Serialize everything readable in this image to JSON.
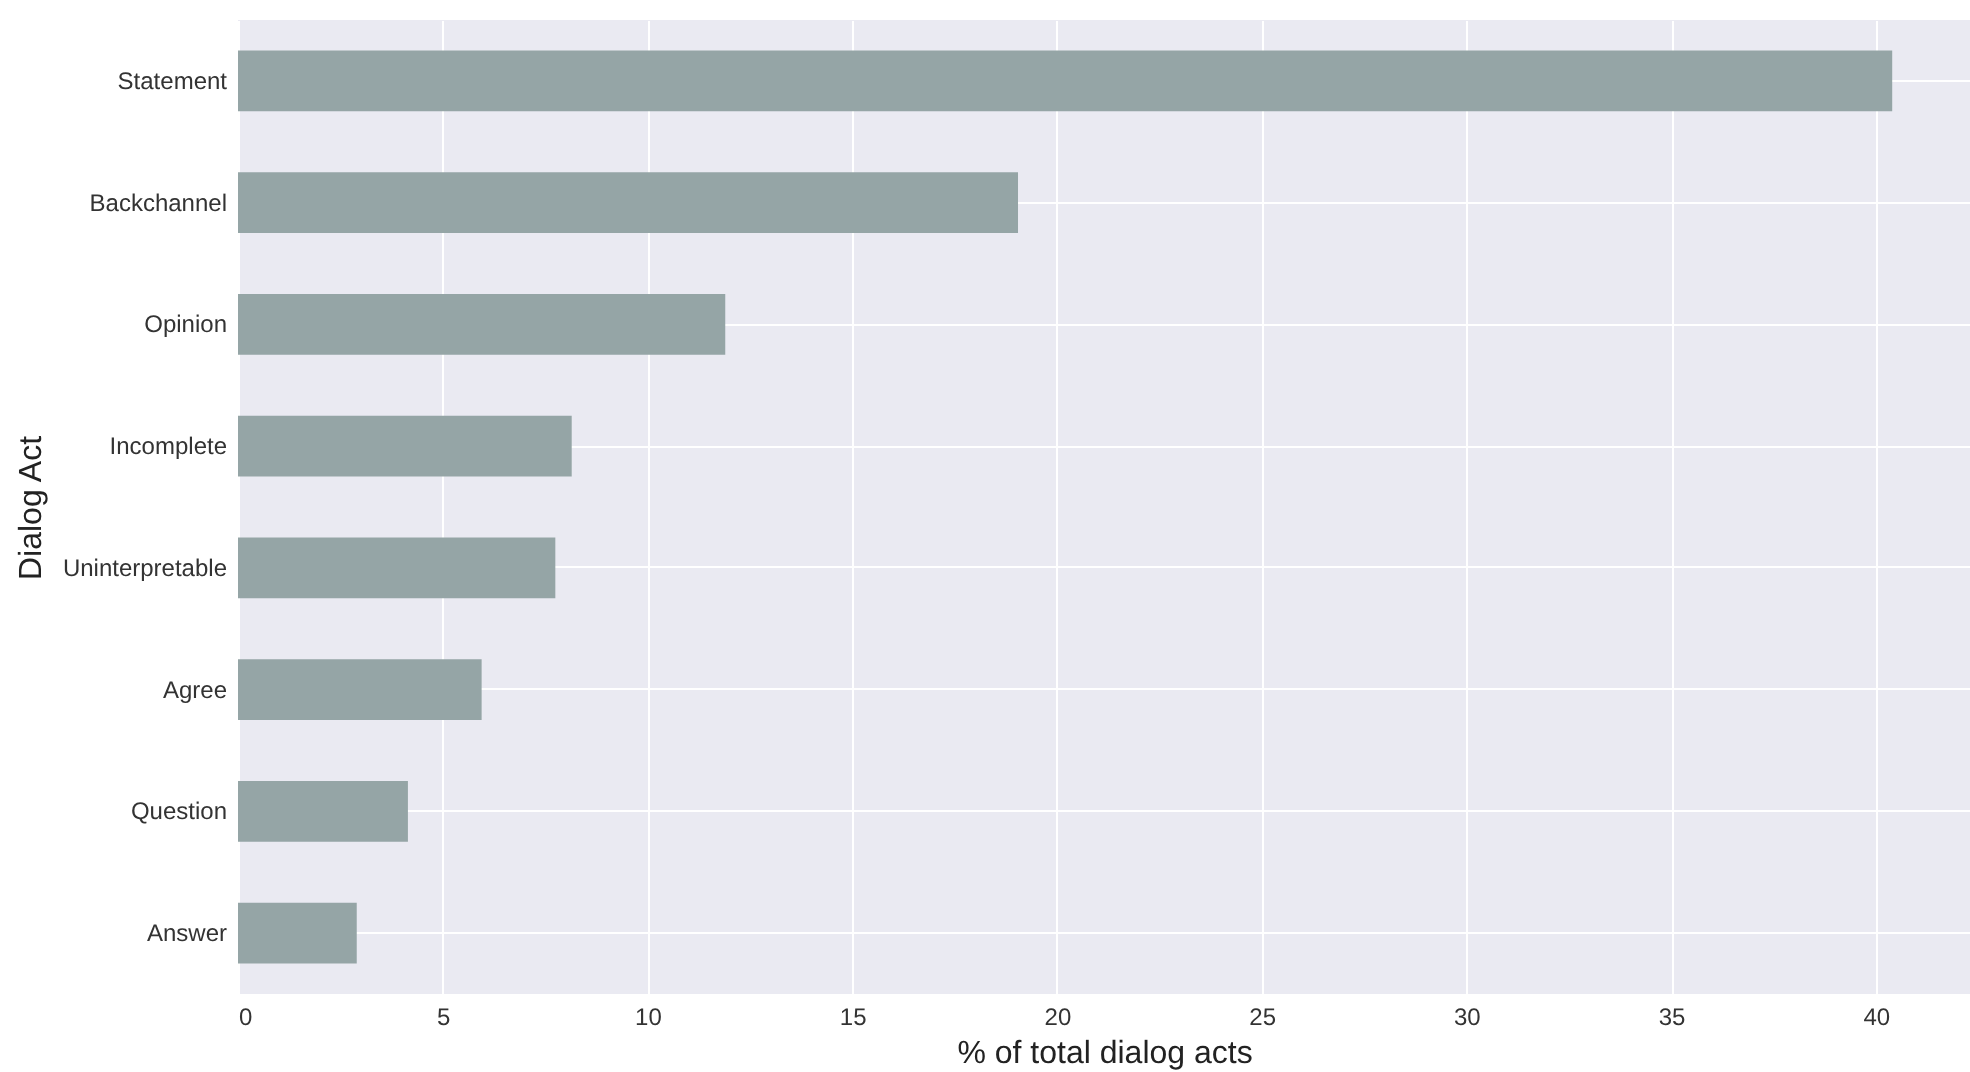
{
  "chart_data": {
    "type": "bar",
    "orientation": "horizontal",
    "xlabel": "% of total dialog acts",
    "ylabel": "Dialog Act",
    "categories": [
      "Statement",
      "Backchannel",
      "Opinion",
      "Incomplete",
      "Uninterpretable",
      "Agree",
      "Question",
      "Answer"
    ],
    "values": [
      40.4,
      19.05,
      11.9,
      8.15,
      7.75,
      5.95,
      4.15,
      2.9
    ],
    "color": "#95a5a6",
    "xlim": [
      0,
      42.3
    ],
    "xticks": [
      0,
      5,
      10,
      15,
      20,
      25,
      30,
      35,
      40
    ],
    "grid": true
  }
}
